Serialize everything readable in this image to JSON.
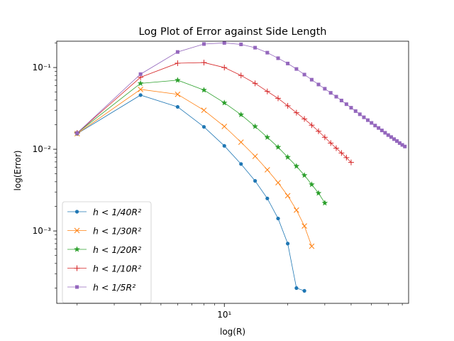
{
  "chart_data": {
    "type": "line",
    "title": "Log Plot of Error against Side Length",
    "xlabel": "log(R)",
    "ylabel": "log(Error)",
    "xscale": "log",
    "yscale": "log",
    "xlim": [
      1.6,
      75
    ],
    "ylim": [
      0.00013,
      0.21
    ],
    "legend": "lower-left",
    "x_ticks": [
      {
        "value": 10,
        "label": "10¹"
      }
    ],
    "y_ticks": [
      {
        "value": 0.001,
        "label": "10⁻³"
      },
      {
        "value": 0.01,
        "label": "10⁻²"
      },
      {
        "value": 0.1,
        "label": "10⁻¹"
      }
    ],
    "series": [
      {
        "name": "h < 1/40R²",
        "color": "#1f77b4",
        "marker": "circle",
        "x": [
          2,
          4,
          6,
          8,
          10,
          12,
          14,
          16,
          18,
          20,
          22,
          24
        ],
        "y": [
          0.0155,
          0.046,
          0.033,
          0.0188,
          0.011,
          0.0066,
          0.0041,
          0.0025,
          0.00142,
          0.0007,
          0.0002,
          0.000185
        ]
      },
      {
        "name": "h < 1/30R²",
        "color": "#ff7f0e",
        "marker": "x",
        "x": [
          2,
          4,
          6,
          8,
          10,
          12,
          14,
          16,
          18,
          20,
          22,
          24,
          26
        ],
        "y": [
          0.0155,
          0.054,
          0.047,
          0.03,
          0.019,
          0.0122,
          0.0082,
          0.0056,
          0.0039,
          0.0027,
          0.0018,
          0.00115,
          0.00065
        ]
      },
      {
        "name": "h < 1/20R²",
        "color": "#2ca02c",
        "marker": "star",
        "x": [
          2,
          4,
          6,
          8,
          10,
          12,
          14,
          16,
          18,
          20,
          22,
          24,
          26,
          28,
          30
        ],
        "y": [
          0.0158,
          0.064,
          0.07,
          0.053,
          0.037,
          0.0265,
          0.019,
          0.014,
          0.0106,
          0.008,
          0.0062,
          0.0048,
          0.0037,
          0.0029,
          0.0022
        ]
      },
      {
        "name": "h < 1/10R²",
        "color": "#d62728",
        "marker": "plus",
        "x": [
          2,
          4,
          6,
          8,
          10,
          12,
          14,
          16,
          18,
          20,
          22,
          24,
          26,
          28,
          30,
          32,
          34,
          36,
          38,
          40
        ],
        "y": [
          0.0158,
          0.076,
          0.113,
          0.115,
          0.1,
          0.08,
          0.064,
          0.051,
          0.042,
          0.034,
          0.028,
          0.0235,
          0.0197,
          0.0166,
          0.014,
          0.0119,
          0.0103,
          0.009,
          0.0079,
          0.0069
        ]
      },
      {
        "name": "h < 1/5R²",
        "color": "#9467bd",
        "marker": "square",
        "x": [
          2,
          4,
          6,
          8,
          10,
          12,
          14,
          16,
          18,
          20,
          22,
          24,
          26,
          28,
          30,
          32,
          34,
          36,
          38,
          40,
          42,
          44,
          46,
          48,
          50,
          52,
          54,
          56,
          58,
          60,
          62,
          64,
          66,
          68,
          70,
          72
        ],
        "y": [
          0.0158,
          0.083,
          0.155,
          0.194,
          0.2,
          0.192,
          0.175,
          0.152,
          0.13,
          0.112,
          0.096,
          0.082,
          0.071,
          0.062,
          0.055,
          0.049,
          0.044,
          0.0395,
          0.0356,
          0.0322,
          0.0293,
          0.0268,
          0.0246,
          0.0227,
          0.021,
          0.0195,
          0.0182,
          0.017,
          0.0159,
          0.0149,
          0.0141,
          0.0133,
          0.0126,
          0.0119,
          0.0113,
          0.0108
        ]
      }
    ]
  }
}
